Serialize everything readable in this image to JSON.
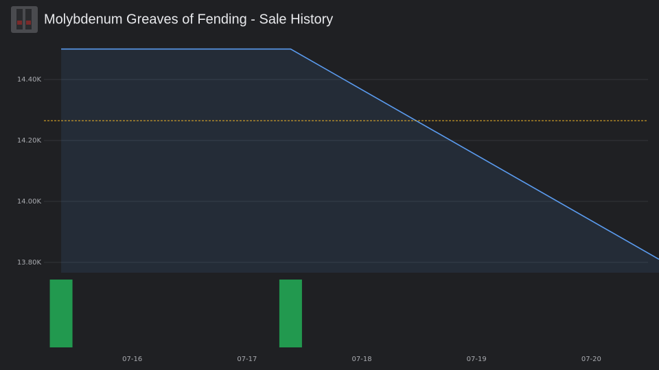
{
  "chart_data": {
    "type": "line",
    "title": "Molybdenum Greaves of Fending - Sale History",
    "xlim": [
      15.23,
      20.59
    ],
    "xticks": [
      {
        "value": 16,
        "label": "07-16"
      },
      {
        "value": 17,
        "label": "07-17"
      },
      {
        "value": 18,
        "label": "07-18"
      },
      {
        "value": 19,
        "label": "07-19"
      },
      {
        "value": 20,
        "label": "07-20"
      }
    ],
    "ylim": [
      13766,
      14526
    ],
    "yticks": [
      {
        "value": 13800,
        "label": "13.80K"
      },
      {
        "value": 14000,
        "label": "14.00K"
      },
      {
        "value": 14200,
        "label": "14.20K"
      },
      {
        "value": 14400,
        "label": "14.40K"
      }
    ],
    "grid": true,
    "series": [
      {
        "color": "#5b9cf0",
        "x": [
          15.38,
          17.38,
          20.59
        ],
        "values": [
          14500,
          14500,
          13810
        ]
      }
    ],
    "average_line": {
      "value": 14265,
      "color": "#f0b429"
    },
    "volume": {
      "color": "#22994f",
      "x": [
        15.38,
        17.38
      ],
      "values": [
        1,
        1
      ],
      "ylim": [
        0,
        1
      ]
    }
  }
}
